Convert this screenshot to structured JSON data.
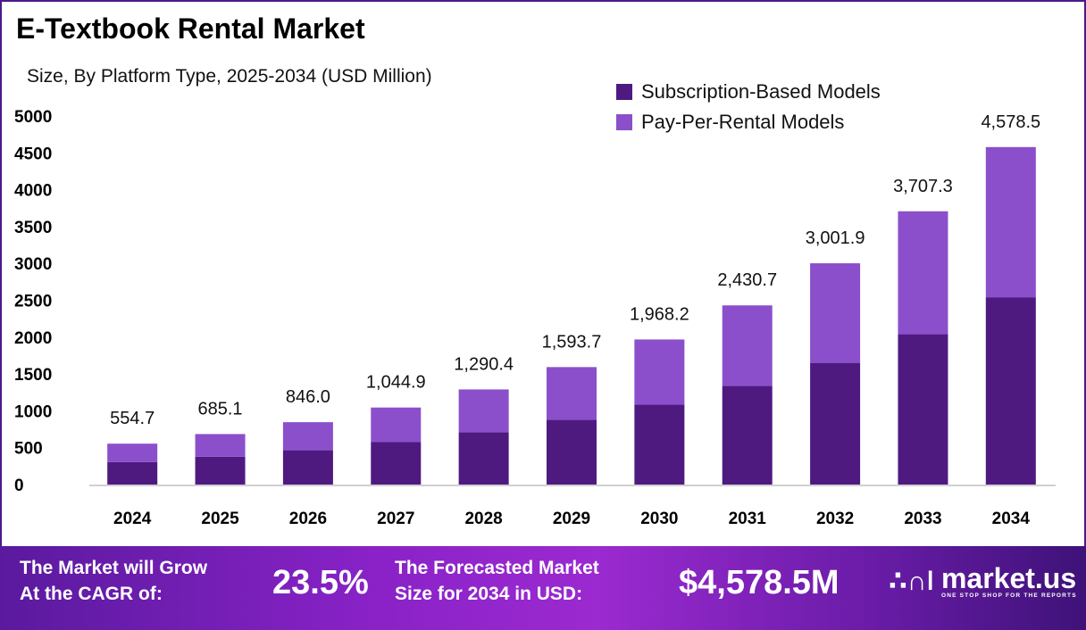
{
  "title": "E-Textbook Rental Market",
  "subtitle": "Size, By Platform Type, 2025-2034 (USD Million)",
  "colors": {
    "subscription": "#4e1a80",
    "pay_per_rental": "#8b4fcb",
    "frame": "#4b1a8a"
  },
  "chart_data": {
    "type": "bar",
    "stacked": true,
    "categories": [
      "2024",
      "2025",
      "2026",
      "2027",
      "2028",
      "2029",
      "2030",
      "2031",
      "2032",
      "2033",
      "2034"
    ],
    "series": [
      {
        "name": "Subscription-Based Models",
        "values": [
          305,
          377,
          465,
          575,
          710,
          877,
          1083,
          1337,
          1651,
          2039,
          2541
        ]
      },
      {
        "name": "Pay-Per-Rental Models",
        "values": [
          249.7,
          308.1,
          381.0,
          469.9,
          580.4,
          716.7,
          885.2,
          1093.7,
          1350.9,
          1668.3,
          2037.5
        ]
      }
    ],
    "totals": [
      554.7,
      685.1,
      846.0,
      1044.9,
      1290.4,
      1593.7,
      1968.2,
      2430.7,
      3001.9,
      3707.3,
      4578.5
    ],
    "total_labels": [
      "554.7",
      "685.1",
      "846.0",
      "1,044.9",
      "1,290.4",
      "1,593.7",
      "1,968.2",
      "2,430.7",
      "3,001.9",
      "3,707.3",
      "4,578.5"
    ],
    "yticks": [
      "0",
      "500",
      "1000",
      "1500",
      "2000",
      "2500",
      "3000",
      "3500",
      "4000",
      "4500",
      "5000"
    ],
    "ylim": [
      0,
      5000
    ],
    "grid": false,
    "legend": "top-right"
  },
  "footer": {
    "cagr_label_line1": "The Market will Grow",
    "cagr_label_line2": "At the CAGR of:",
    "cagr_value": "23.5%",
    "forecast_label_line1": "The Forecasted Market",
    "forecast_label_line2": "Size for 2034 in USD:",
    "forecast_value": "$4,578.5M",
    "brand": "market.us",
    "tagline": "ONE STOP SHOP FOR THE REPORTS"
  }
}
